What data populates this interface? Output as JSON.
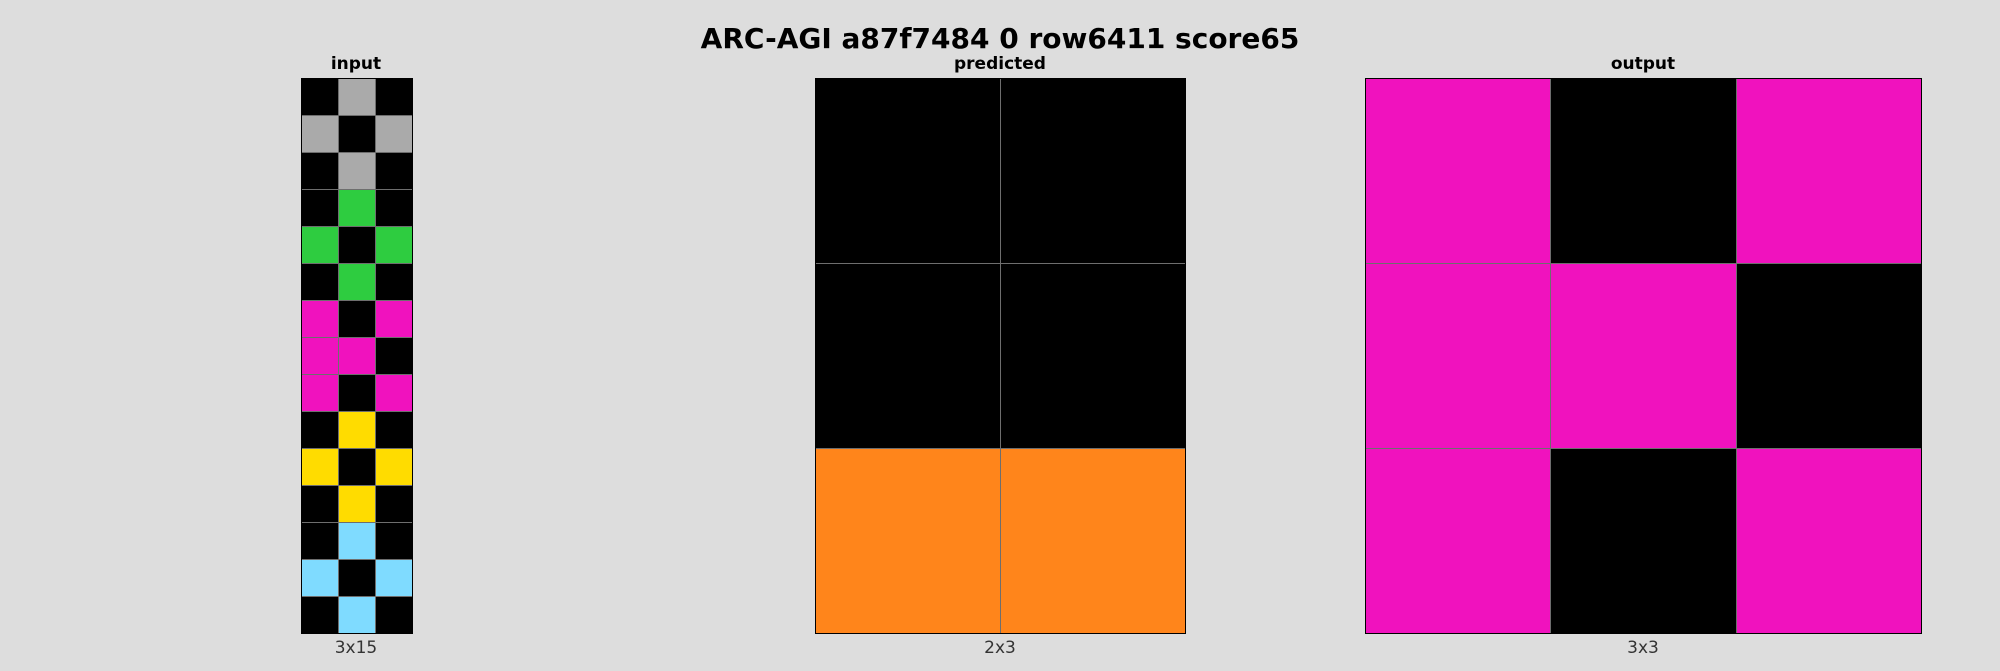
{
  "title": "ARC-AGI a87f7484 0 row6411 score65",
  "palette": {
    "0": "#000000",
    "3": "#2ecc40",
    "4": "#ffdc00",
    "5": "#aaaaaa",
    "6": "#f012be",
    "7": "#ff851b",
    "8": "#7fdbff"
  },
  "panels": {
    "input": {
      "label": "input",
      "dims": "3x15",
      "rows": 15,
      "cols": 3,
      "cells": [
        [
          0,
          5,
          0
        ],
        [
          5,
          0,
          5
        ],
        [
          0,
          5,
          0
        ],
        [
          0,
          3,
          0
        ],
        [
          3,
          0,
          3
        ],
        [
          0,
          3,
          0
        ],
        [
          6,
          0,
          6
        ],
        [
          6,
          6,
          0
        ],
        [
          6,
          0,
          6
        ],
        [
          0,
          4,
          0
        ],
        [
          4,
          0,
          4
        ],
        [
          0,
          4,
          0
        ],
        [
          0,
          8,
          0
        ],
        [
          8,
          0,
          8
        ],
        [
          0,
          8,
          0
        ]
      ]
    },
    "predicted": {
      "label": "predicted",
      "dims": "2x3",
      "rows": 3,
      "cols": 2,
      "cells": [
        [
          0,
          0
        ],
        [
          0,
          0
        ],
        [
          7,
          7
        ]
      ]
    },
    "output": {
      "label": "output",
      "dims": "3x3",
      "rows": 3,
      "cols": 3,
      "cells": [
        [
          6,
          0,
          6
        ],
        [
          6,
          6,
          0
        ],
        [
          6,
          0,
          6
        ]
      ]
    }
  }
}
